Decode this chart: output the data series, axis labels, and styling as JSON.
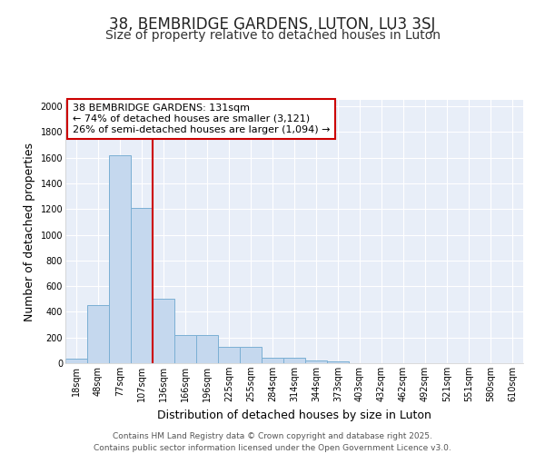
{
  "title": "38, BEMBRIDGE GARDENS, LUTON, LU3 3SJ",
  "subtitle": "Size of property relative to detached houses in Luton",
  "xlabel": "Distribution of detached houses by size in Luton",
  "ylabel": "Number of detached properties",
  "categories": [
    "18sqm",
    "48sqm",
    "77sqm",
    "107sqm",
    "136sqm",
    "166sqm",
    "196sqm",
    "225sqm",
    "255sqm",
    "284sqm",
    "314sqm",
    "344sqm",
    "373sqm",
    "403sqm",
    "432sqm",
    "462sqm",
    "492sqm",
    "521sqm",
    "551sqm",
    "580sqm",
    "610sqm"
  ],
  "values": [
    35,
    455,
    1620,
    1210,
    505,
    220,
    220,
    125,
    125,
    45,
    40,
    20,
    15,
    0,
    0,
    0,
    0,
    0,
    0,
    0,
    0
  ],
  "bar_color": "#c5d8ee",
  "bar_edge_color": "#7bafd4",
  "vline_x": 3.5,
  "vline_color": "#cc0000",
  "annotation_text": "38 BEMBRIDGE GARDENS: 131sqm\n← 74% of detached houses are smaller (3,121)\n26% of semi-detached houses are larger (1,094) →",
  "annotation_box_edge_color": "#cc0000",
  "ylim": [
    0,
    2050
  ],
  "yticks": [
    0,
    200,
    400,
    600,
    800,
    1000,
    1200,
    1400,
    1600,
    1800,
    2000
  ],
  "fig_bg_color": "#ffffff",
  "plot_bg_color": "#e8eef8",
  "grid_color": "#ffffff",
  "title_fontsize": 12,
  "subtitle_fontsize": 10,
  "axis_label_fontsize": 9,
  "tick_fontsize": 7,
  "annotation_fontsize": 8,
  "footer_text": "Contains HM Land Registry data © Crown copyright and database right 2025.\nContains public sector information licensed under the Open Government Licence v3.0.",
  "footer_fontsize": 6.5
}
